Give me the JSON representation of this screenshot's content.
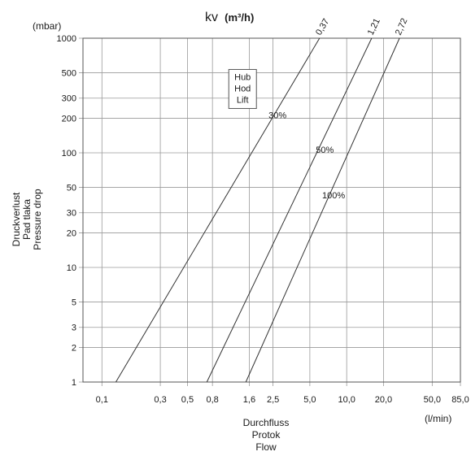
{
  "chart_data": {
    "type": "line",
    "title_main": "kv",
    "title_unit": "(m³/h)",
    "ylabel_lines": [
      "Druckverlust",
      "Pad tlaka",
      "Pressure drop"
    ],
    "ylabel_unit": "(mbar)",
    "xlabel_lines": [
      "Durchfluss",
      "Protok",
      "Flow"
    ],
    "xlabel_unit": "(l/min)",
    "x_scale": "log",
    "y_scale": "log",
    "xlim": [
      0.07,
      85
    ],
    "ylim": [
      1,
      1000
    ],
    "grid": true,
    "x_ticks": [
      {
        "value": 0.1,
        "label": "0,1"
      },
      {
        "value": 0.3,
        "label": "0,3"
      },
      {
        "value": 0.5,
        "label": "0,5"
      },
      {
        "value": 0.8,
        "label": "0,8"
      },
      {
        "value": 1.6,
        "label": "1,6"
      },
      {
        "value": 2.5,
        "label": "2,5"
      },
      {
        "value": 5.0,
        "label": "5,0"
      },
      {
        "value": 10.0,
        "label": "10,0"
      },
      {
        "value": 20.0,
        "label": "20,0"
      },
      {
        "value": 50.0,
        "label": "50,0"
      },
      {
        "value": 85.0,
        "label": "85,0"
      }
    ],
    "y_ticks": [
      {
        "value": 1,
        "label": "1"
      },
      {
        "value": 2,
        "label": "2"
      },
      {
        "value": 3,
        "label": "3"
      },
      {
        "value": 5,
        "label": "5"
      },
      {
        "value": 10,
        "label": "10"
      },
      {
        "value": 20,
        "label": "20"
      },
      {
        "value": 30,
        "label": "30"
      },
      {
        "value": 50,
        "label": "50"
      },
      {
        "value": 100,
        "label": "100"
      },
      {
        "value": 200,
        "label": "200"
      },
      {
        "value": 300,
        "label": "300"
      },
      {
        "value": 500,
        "label": "500"
      },
      {
        "value": 1000,
        "label": "1000"
      }
    ],
    "series": [
      {
        "name": "0,37",
        "x": [
          0.13,
          6.0
        ],
        "y": [
          1,
          1000
        ]
      },
      {
        "name": "1,21",
        "x": [
          0.72,
          16.0
        ],
        "y": [
          1,
          1000
        ]
      },
      {
        "name": "2,72",
        "x": [
          1.5,
          27.0
        ],
        "y": [
          1,
          1000
        ]
      }
    ],
    "lift_box_lines": [
      "Hub",
      "Hod",
      "Lift"
    ],
    "annotations": [
      {
        "text": "30%",
        "x": 2.3,
        "y": 200
      },
      {
        "text": "50%",
        "x": 5.6,
        "y": 100
      },
      {
        "text": "100%",
        "x": 6.3,
        "y": 40
      }
    ],
    "lift_box_anchor": {
      "x": 1.5,
      "y": 500
    }
  }
}
